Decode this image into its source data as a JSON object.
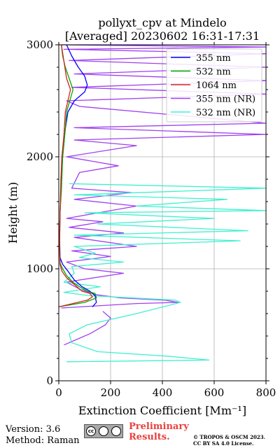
{
  "chart_data": {
    "type": "line",
    "title": "pollyxt_cpv at Mindelo",
    "subtitle": "[Averaged] 20230602 16:31-17:31",
    "xlabel": "Extinction Coefficient [Mm⁻¹]",
    "ylabel": "Height (m)",
    "xlim": [
      0,
      800
    ],
    "ylim": [
      0,
      3000
    ],
    "xticks": [
      "0",
      "200",
      "400",
      "600",
      "800"
    ],
    "yticks": [
      "0",
      "1000",
      "2000",
      "3000"
    ],
    "grid": true,
    "legend_position": "top-right",
    "series": [
      {
        "name": "355 nm",
        "color": "#0000ff",
        "points": [
          [
            130,
            660
          ],
          [
            145,
            700
          ],
          [
            140,
            760
          ],
          [
            120,
            800
          ],
          [
            90,
            840
          ],
          [
            60,
            900
          ],
          [
            35,
            980
          ],
          [
            15,
            1040
          ],
          [
            5,
            1100
          ],
          [
            3,
            1300
          ],
          [
            5,
            1500
          ],
          [
            8,
            1700
          ],
          [
            15,
            2000
          ],
          [
            25,
            2250
          ],
          [
            35,
            2400
          ],
          [
            60,
            2500
          ],
          [
            100,
            2580
          ],
          [
            110,
            2640
          ],
          [
            100,
            2720
          ],
          [
            75,
            2800
          ],
          [
            50,
            2900
          ],
          [
            30,
            3000
          ]
        ]
      },
      {
        "name": "532 nm",
        "color": "#00aa00",
        "points": [
          [
            0,
            660
          ],
          [
            100,
            700
          ],
          [
            145,
            740
          ],
          [
            140,
            780
          ],
          [
            110,
            800
          ],
          [
            80,
            840
          ],
          [
            55,
            880
          ],
          [
            30,
            940
          ],
          [
            15,
            1000
          ],
          [
            5,
            1050
          ],
          [
            3,
            1200
          ],
          [
            5,
            1500
          ],
          [
            10,
            1700
          ],
          [
            15,
            2000
          ],
          [
            25,
            2250
          ],
          [
            30,
            2400
          ],
          [
            55,
            2600
          ],
          [
            40,
            2700
          ],
          [
            25,
            2800
          ],
          [
            15,
            2900
          ],
          [
            10,
            3000
          ]
        ]
      },
      {
        "name": "1064 nm",
        "color": "#d62020",
        "points": [
          [
            0,
            660
          ],
          [
            110,
            720
          ],
          [
            130,
            750
          ],
          [
            120,
            780
          ],
          [
            90,
            800
          ],
          [
            60,
            860
          ],
          [
            30,
            920
          ],
          [
            12,
            980
          ],
          [
            5,
            1040
          ],
          [
            3,
            1200
          ],
          [
            5,
            1500
          ],
          [
            8,
            1800
          ],
          [
            12,
            2000
          ],
          [
            20,
            2200
          ],
          [
            25,
            2400
          ],
          [
            45,
            2600
          ],
          [
            30,
            2700
          ],
          [
            20,
            2850
          ],
          [
            10,
            3000
          ]
        ]
      },
      {
        "name": "355 nm (NR)",
        "color": "#a040f0",
        "points": [
          [
            10,
            650
          ],
          [
            80,
            660
          ],
          [
            300,
            690
          ],
          [
            460,
            700
          ],
          [
            410,
            720
          ],
          [
            240,
            740
          ],
          [
            140,
            770
          ],
          [
            80,
            820
          ],
          [
            30,
            880
          ],
          [
            80,
            900
          ],
          [
            250,
            960
          ],
          [
            100,
            1000
          ],
          [
            30,
            1060
          ],
          [
            200,
            1110
          ],
          [
            50,
            1160
          ],
          [
            300,
            1200
          ],
          [
            60,
            1280
          ],
          [
            250,
            1320
          ],
          [
            40,
            1370
          ],
          [
            170,
            1420
          ],
          [
            30,
            1450
          ],
          [
            300,
            1560
          ],
          [
            60,
            1620
          ],
          [
            280,
            1680
          ],
          [
            50,
            1720
          ],
          [
            80,
            1860
          ],
          [
            230,
            1920
          ],
          [
            30,
            2000
          ],
          [
            300,
            2100
          ],
          [
            60,
            2150
          ],
          [
            800,
            2200
          ],
          [
            60,
            2260
          ],
          [
            800,
            2300
          ],
          [
            80,
            2450
          ],
          [
            30,
            2500
          ],
          [
            800,
            2560
          ],
          [
            50,
            2620
          ],
          [
            800,
            2680
          ],
          [
            60,
            2740
          ],
          [
            800,
            2800
          ],
          [
            40,
            2860
          ],
          [
            800,
            2920
          ],
          [
            20,
            2960
          ],
          [
            800,
            2980
          ],
          [
            10,
            3000
          ]
        ],
        "profile_low": [
          [
            20,
            320
          ],
          [
            60,
            360
          ],
          [
            120,
            420
          ],
          [
            180,
            500
          ],
          [
            200,
            560
          ],
          [
            170,
            620
          ]
        ]
      },
      {
        "name": "532 nm (NR)",
        "color": "#40f0d0",
        "points": [
          [
            30,
            170
          ],
          [
            580,
            185
          ],
          [
            420,
            220
          ],
          [
            150,
            260
          ],
          [
            50,
            340
          ],
          [
            40,
            420
          ],
          [
            110,
            500
          ],
          [
            300,
            600
          ],
          [
            470,
            700
          ],
          [
            450,
            720
          ],
          [
            120,
            760
          ],
          [
            20,
            790
          ],
          [
            160,
            840
          ],
          [
            20,
            880
          ],
          [
            60,
            960
          ],
          [
            50,
            1020
          ],
          [
            250,
            1060
          ],
          [
            80,
            1100
          ],
          [
            140,
            1140
          ],
          [
            60,
            1200
          ],
          [
            700,
            1250
          ],
          [
            60,
            1300
          ],
          [
            730,
            1340
          ],
          [
            150,
            1400
          ],
          [
            600,
            1450
          ],
          [
            100,
            1500
          ],
          [
            800,
            1520
          ],
          [
            300,
            1560
          ],
          [
            650,
            1620
          ],
          [
            60,
            1660
          ],
          [
            800,
            1720
          ],
          [
            40,
            1760
          ]
        ]
      }
    ]
  },
  "footer": {
    "version": "Version: 3.6",
    "method": "Method: Raman",
    "cc_label": "cc",
    "preliminary_line1": "Preliminary",
    "preliminary_line2": "Results.",
    "copyright_line1": "© TROPOS & OSCM 2023.",
    "copyright_line2": "CC BY SA 4.0 License."
  }
}
